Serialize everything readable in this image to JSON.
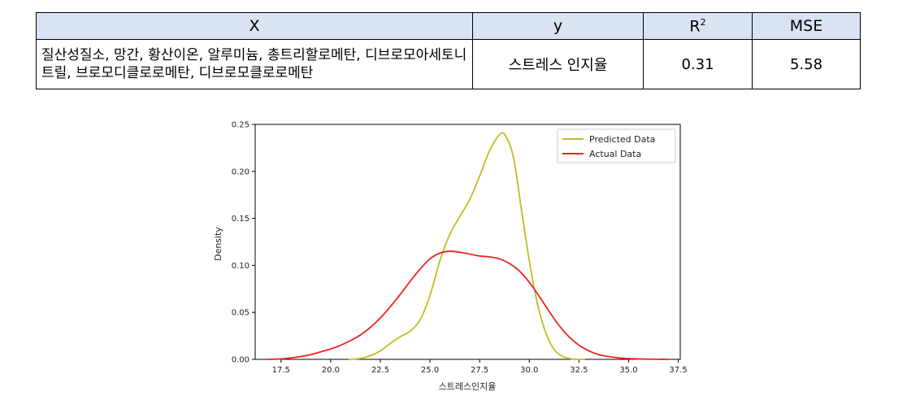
{
  "table": {
    "headers": {
      "x": "X",
      "y": "y",
      "r2_base": "R",
      "r2_sup": "2",
      "mse": "MSE"
    },
    "row": {
      "x": "질산성질소, 망간, 황산이온, 알루미늄, 총트리할로메탄, 디브로모아세토니트릴, 브로모디클로로메탄, 디브로모클로로메탄",
      "y": "스트레스 인지율",
      "r2": "0.31",
      "mse": "5.58"
    }
  },
  "chart_data": {
    "type": "line",
    "title": "",
    "xlabel": "스트레스인지율",
    "ylabel": "Density",
    "xlim": [
      16.2,
      37.6
    ],
    "ylim": [
      0,
      0.25
    ],
    "xticks": [
      "17.5",
      "20.0",
      "22.5",
      "25.0",
      "27.5",
      "30.0",
      "32.5",
      "35.0",
      "37.5"
    ],
    "yticks": [
      "0.00",
      "0.05",
      "0.10",
      "0.15",
      "0.20",
      "0.25"
    ],
    "legend_position": "top-right",
    "series": [
      {
        "name": "Predicted Data",
        "color": "#bfbf1f",
        "x": [
          20.9,
          21.5,
          22.0,
          22.5,
          23.0,
          23.5,
          24.0,
          24.5,
          25.0,
          25.5,
          26.0,
          26.5,
          27.0,
          27.5,
          28.0,
          28.5,
          28.8,
          29.2,
          29.6,
          30.0,
          30.4,
          30.8,
          31.2,
          31.6,
          32.0,
          32.4,
          32.8
        ],
        "y": [
          0.0,
          0.001,
          0.004,
          0.009,
          0.017,
          0.024,
          0.03,
          0.042,
          0.068,
          0.105,
          0.133,
          0.152,
          0.17,
          0.195,
          0.222,
          0.239,
          0.238,
          0.215,
          0.16,
          0.105,
          0.06,
          0.03,
          0.012,
          0.004,
          0.001,
          0.0,
          0.0
        ]
      },
      {
        "name": "Actual Data",
        "color": "#ee2222",
        "x": [
          16.8,
          17.5,
          18.0,
          18.5,
          19.0,
          19.5,
          20.0,
          20.5,
          21.0,
          21.5,
          22.0,
          22.5,
          23.0,
          23.5,
          24.0,
          24.5,
          25.0,
          25.5,
          26.0,
          26.5,
          27.0,
          27.5,
          28.0,
          28.5,
          29.0,
          29.5,
          30.0,
          30.5,
          31.0,
          31.5,
          32.0,
          32.5,
          33.0,
          33.5,
          34.0,
          34.5,
          35.0,
          35.5,
          36.0,
          36.5,
          37.0
        ],
        "y": [
          0.0,
          0.0005,
          0.0015,
          0.003,
          0.005,
          0.008,
          0.011,
          0.015,
          0.02,
          0.026,
          0.034,
          0.044,
          0.056,
          0.069,
          0.083,
          0.096,
          0.107,
          0.113,
          0.115,
          0.114,
          0.112,
          0.11,
          0.109,
          0.107,
          0.102,
          0.094,
          0.082,
          0.067,
          0.051,
          0.036,
          0.024,
          0.015,
          0.009,
          0.005,
          0.003,
          0.0015,
          0.0008,
          0.0004,
          0.0002,
          0.0001,
          0.0
        ]
      }
    ]
  }
}
